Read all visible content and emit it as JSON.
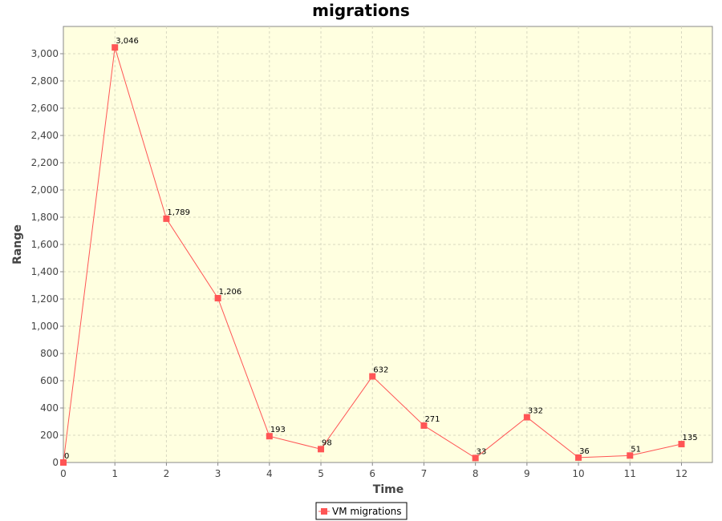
{
  "chart_data": {
    "type": "line",
    "title": "migrations",
    "xlabel": "Time",
    "ylabel": "Range",
    "x": [
      0,
      1,
      2,
      3,
      4,
      5,
      6,
      7,
      8,
      9,
      10,
      11,
      12
    ],
    "series": [
      {
        "name": "VM migrations",
        "values": [
          0,
          3046,
          1789,
          1206,
          193,
          98,
          632,
          271,
          33,
          332,
          36,
          51,
          135
        ],
        "labels": [
          "0",
          "3,046",
          "1,789",
          "1,206",
          "193",
          "98",
          "632",
          "271",
          "33",
          "332",
          "36",
          "51",
          "135"
        ],
        "color": "#ff5555"
      }
    ],
    "xticks": [
      "0",
      "1",
      "2",
      "3",
      "4",
      "5",
      "6",
      "7",
      "8",
      "9",
      "10",
      "11",
      "12"
    ],
    "yticks": [
      "0",
      "200",
      "400",
      "600",
      "800",
      "1,000",
      "1,200",
      "1,400",
      "1,600",
      "1,800",
      "2,000",
      "2,200",
      "2,400",
      "2,600",
      "2,800",
      "3,000"
    ],
    "ytick_values": [
      0,
      200,
      400,
      600,
      800,
      1000,
      1200,
      1400,
      1600,
      1800,
      2000,
      2200,
      2400,
      2600,
      2800,
      3000
    ],
    "xlim": [
      0,
      12.6
    ],
    "ylim": [
      0,
      3200
    ],
    "grid": true,
    "legend": "bottom-center",
    "colors": {
      "plot_background": "#ffffe0",
      "gridline": "#d8d8c0",
      "line": "#ff5555"
    }
  }
}
